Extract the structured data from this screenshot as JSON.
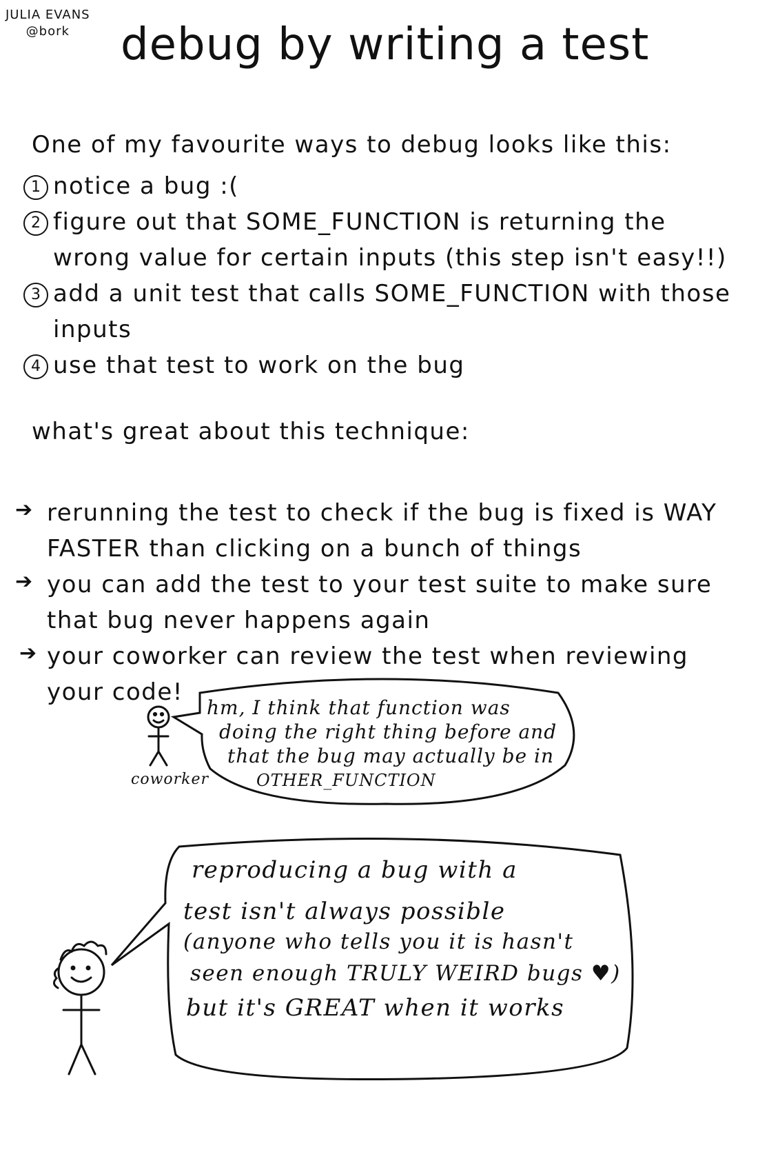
{
  "author": {
    "name": "JULIA EVANS",
    "handle": "@bork"
  },
  "title": "debug by writing a test",
  "intro": "One of my favourite ways to debug looks like this:",
  "steps": [
    {
      "number": "1",
      "lines": [
        "notice a bug :("
      ]
    },
    {
      "number": "2",
      "lines": [
        "figure out that SOME_FUNCTION is returning the",
        "wrong value for certain inputs (this step isn't easy!!)"
      ]
    },
    {
      "number": "3",
      "lines": [
        "add a unit test that calls SOME_FUNCTION with those",
        "inputs"
      ]
    },
    {
      "number": "4",
      "lines": [
        "use that test to work on the bug"
      ]
    }
  ],
  "great_heading": "what's great about this technique:",
  "benefits": [
    {
      "lines": [
        "rerunning the test to check if the bug is fixed is WAY",
        "FASTER than clicking on a bunch of things"
      ]
    },
    {
      "lines": [
        "you can add the test to your test suite to make sure",
        "that bug never happens again"
      ]
    },
    {
      "lines": [
        "your coworker can review the test when reviewing",
        "your code!"
      ]
    }
  ],
  "coworker": {
    "label": "coworker",
    "speech": [
      "hm, I think that function was",
      "doing the right thing before and",
      "that the bug may actually be in",
      "OTHER_FUNCTION"
    ]
  },
  "author_speech": [
    "reproducing a bug with a",
    "test isn't always possible",
    "(anyone who tells you it is hasn't",
    "seen enough TRULY WEIRD bugs ♥)",
    "but it's GREAT when it works"
  ]
}
